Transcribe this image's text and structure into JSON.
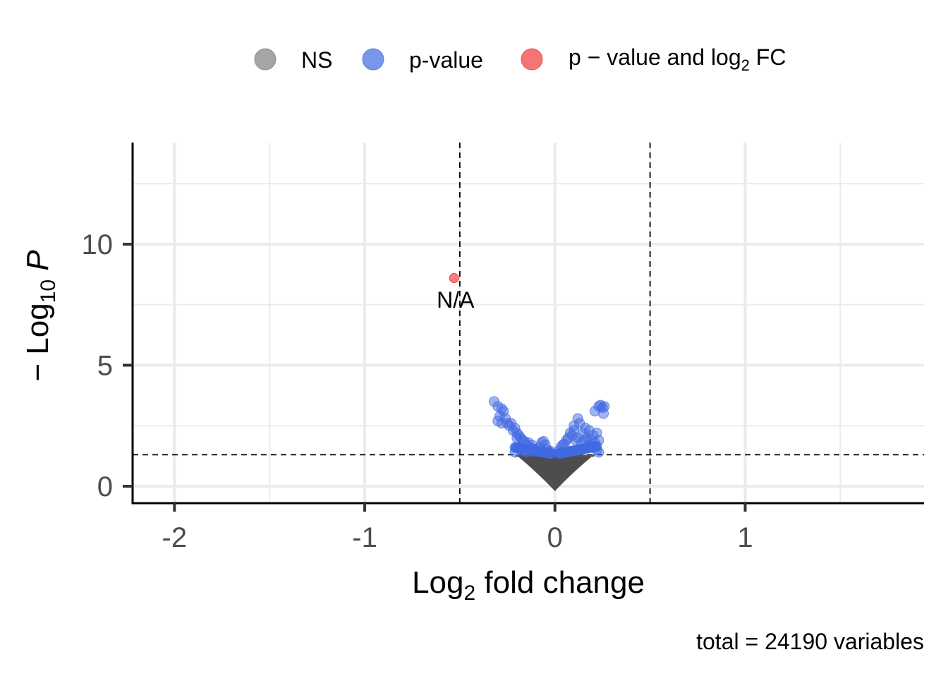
{
  "chart_data": {
    "type": "scatter",
    "subtype": "volcano",
    "title": "",
    "xlabel": {
      "base": "Log",
      "sub": "2",
      "rest": " fold change"
    },
    "ylabel": {
      "prefix": "− Log",
      "sub": "10",
      "italic": "P"
    },
    "xlim": [
      -2.22,
      1.94
    ],
    "ylim": [
      -0.7,
      14.2
    ],
    "x_ticks": [
      -2,
      -1,
      0,
      1
    ],
    "x_tick_labels": [
      "-2",
      "-1",
      "0",
      "1"
    ],
    "y_ticks": [
      0,
      5,
      10
    ],
    "y_tick_labels": [
      "0",
      "5",
      "10"
    ],
    "grid": true,
    "legend_position": "top",
    "legend": [
      {
        "label": "NS",
        "color": "#7f7f7f"
      },
      {
        "label": "p-value",
        "color": "#4169e1"
      },
      {
        "label_parts": {
          "a": "p − value and log",
          "sub": "2",
          "b": " FC"
        },
        "color": "#ef3b3b"
      }
    ],
    "thresholds": {
      "log2fc": [
        -0.5,
        0.5
      ],
      "neg_log10_p": 1.3
    },
    "highlighted_points": [
      {
        "x": -0.53,
        "y": 8.6,
        "category": "p-value and log2 FC",
        "label": "N/A"
      }
    ],
    "pvalue_points": [
      [
        -0.32,
        3.5
      ],
      [
        -0.3,
        3.3
      ],
      [
        -0.28,
        3.2
      ],
      [
        -0.27,
        3.1
      ],
      [
        -0.29,
        2.9
      ],
      [
        -0.3,
        2.7
      ],
      [
        -0.28,
        2.6
      ],
      [
        -0.26,
        2.8
      ],
      [
        -0.25,
        2.6
      ],
      [
        -0.24,
        2.5
      ],
      [
        -0.23,
        2.6
      ],
      [
        -0.22,
        2.3
      ],
      [
        -0.21,
        2.4
      ],
      [
        -0.2,
        2.2
      ],
      [
        -0.2,
        2.0
      ],
      [
        -0.19,
        2.1
      ],
      [
        -0.18,
        2.0
      ],
      [
        -0.17,
        1.9
      ],
      [
        -0.16,
        1.85
      ],
      [
        -0.15,
        1.7
      ],
      [
        -0.14,
        1.8
      ],
      [
        -0.13,
        1.6
      ],
      [
        -0.12,
        1.7
      ],
      [
        -0.11,
        1.55
      ],
      [
        -0.1,
        1.5
      ],
      [
        -0.09,
        1.45
      ],
      [
        -0.08,
        1.6
      ],
      [
        -0.07,
        1.8
      ],
      [
        -0.06,
        1.85
      ],
      [
        -0.05,
        1.7
      ],
      [
        -0.04,
        1.5
      ],
      [
        -0.03,
        1.4
      ],
      [
        -0.025,
        1.45
      ],
      [
        0.02,
        1.45
      ],
      [
        0.03,
        1.6
      ],
      [
        0.04,
        1.7
      ],
      [
        0.05,
        1.75
      ],
      [
        0.06,
        1.9
      ],
      [
        0.07,
        2.0
      ],
      [
        0.08,
        2.2
      ],
      [
        0.09,
        2.1
      ],
      [
        0.1,
        2.5
      ],
      [
        0.1,
        2.3
      ],
      [
        0.11,
        1.9
      ],
      [
        0.12,
        2.0
      ],
      [
        0.12,
        2.8
      ],
      [
        0.13,
        2.6
      ],
      [
        0.14,
        1.8
      ],
      [
        0.15,
        2.2
      ],
      [
        0.16,
        1.9
      ],
      [
        0.16,
        2.4
      ],
      [
        0.17,
        2.0
      ],
      [
        0.18,
        2.3
      ],
      [
        0.18,
        1.7
      ],
      [
        0.19,
        1.9
      ],
      [
        0.2,
        2.1
      ],
      [
        0.2,
        1.6
      ],
      [
        0.21,
        1.8
      ],
      [
        0.22,
        2.2
      ],
      [
        0.23,
        1.9
      ],
      [
        0.21,
        3.1
      ],
      [
        0.23,
        3.3
      ],
      [
        0.24,
        3.35
      ],
      [
        0.25,
        3.25
      ],
      [
        0.26,
        3.3
      ],
      [
        0.255,
        3.0
      ],
      [
        0.22,
        1.5
      ],
      [
        0.23,
        1.4
      ],
      [
        -0.21,
        1.4
      ],
      [
        -0.18,
        1.5
      ],
      [
        -0.15,
        1.4
      ]
    ],
    "ns_region": "points with |log2FC| < ~0.22 and −log10 P < 1.3 (dense cloud)",
    "caption": "total = 24190 variables"
  }
}
